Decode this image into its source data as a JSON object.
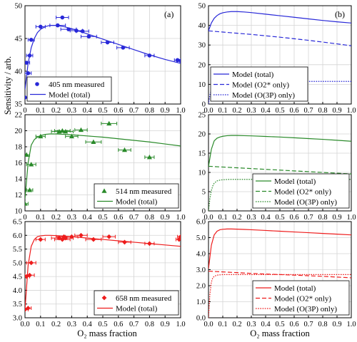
{
  "figure": {
    "ylabel_left": "Sensitivity / arb.",
    "xlabel": "O₂ mass fraction",
    "panel_labels": [
      "(a)",
      "(b)"
    ],
    "colors": {
      "blue": "#2828d8",
      "green": "#2a8a2a",
      "red": "#ee1c1c"
    }
  },
  "chart_data": [
    {
      "id": "a-405",
      "type": "scatter",
      "color": "#2828d8",
      "marker": "circle",
      "xlim": [
        0,
        1
      ],
      "ylim": [
        35,
        50
      ],
      "xticks": [
        "0",
        "0.1",
        "0.2",
        "0.3",
        "0.4",
        "0.5",
        "0.6",
        "0.7",
        "0.8",
        "0.9",
        "1.0"
      ],
      "yticks": [
        "35",
        "40",
        "45",
        "50"
      ],
      "grid": true,
      "legend": "bottom-left",
      "series": [
        {
          "name": "405 nm measured",
          "kind": "points",
          "x": [
            0.0,
            0.01,
            0.02,
            0.03,
            0.04,
            0.1,
            0.21,
            0.24,
            0.28,
            0.33,
            0.37,
            0.41,
            0.53,
            0.63,
            0.8,
            0.98,
            1.0
          ],
          "y": [
            36.0,
            41.3,
            39.7,
            42.4,
            44.8,
            46.8,
            47.0,
            48.2,
            46.4,
            46.2,
            46.1,
            45.3,
            44.4,
            43.6,
            42.4,
            41.7,
            41.6
          ],
          "xerr": [
            0.02,
            0.02,
            0.02,
            0.02,
            0.02,
            0.03,
            0.05,
            0.04,
            0.05,
            0.04,
            0.04,
            0.05,
            0.04,
            0.04,
            0.03,
            0.02,
            0.02
          ]
        },
        {
          "name": "Model (total)",
          "kind": "line",
          "x": [
            0.0,
            0.02,
            0.04,
            0.06,
            0.08,
            0.1,
            0.13,
            0.16,
            0.2,
            0.25,
            0.3,
            0.4,
            0.5,
            0.6,
            0.7,
            0.8,
            0.9,
            1.0
          ],
          "y": [
            37.2,
            41.2,
            43.6,
            45.0,
            45.9,
            46.4,
            46.8,
            47.0,
            47.0,
            46.8,
            46.5,
            45.7,
            44.9,
            44.1,
            43.3,
            42.5,
            41.8,
            41.2
          ]
        }
      ]
    },
    {
      "id": "b-405",
      "type": "line",
      "color": "#2828d8",
      "xlim": [
        0,
        1
      ],
      "ylim": [
        0,
        50
      ],
      "xticks": [
        "0.0",
        "0.1",
        "0.2",
        "0.3",
        "0.4",
        "0.5",
        "0.6",
        "0.7",
        "0.8",
        "0.9",
        "1.0"
      ],
      "yticks": [
        "0",
        "10",
        "20",
        "30",
        "40",
        "50"
      ],
      "grid": true,
      "legend": "bottom-left",
      "series": [
        {
          "name": "Model (total)",
          "dash": "solid",
          "x": [
            0.0,
            0.02,
            0.04,
            0.06,
            0.08,
            0.1,
            0.13,
            0.16,
            0.2,
            0.25,
            0.3,
            0.4,
            0.5,
            0.6,
            0.7,
            0.8,
            0.9,
            1.0
          ],
          "y": [
            37.2,
            41.2,
            43.6,
            45.0,
            45.9,
            46.4,
            46.8,
            47.0,
            47.0,
            46.8,
            46.5,
            45.7,
            44.9,
            44.1,
            43.3,
            42.5,
            41.8,
            41.2
          ]
        },
        {
          "name": "Model (O2* only)",
          "dash": "dashed",
          "x": [
            0.0,
            0.1,
            0.2,
            0.3,
            0.4,
            0.5,
            0.6,
            0.7,
            0.8,
            0.9,
            1.0
          ],
          "y": [
            37.2,
            36.6,
            36.0,
            35.4,
            34.7,
            34.0,
            33.2,
            32.4,
            31.5,
            30.6,
            29.6
          ]
        },
        {
          "name": "Model (O(3P) only)",
          "dash": "dotted",
          "x": [
            0.0,
            0.01,
            0.02,
            0.03,
            0.04,
            0.06,
            0.08,
            0.1,
            0.15,
            0.2,
            0.3,
            0.5,
            0.7,
            1.0
          ],
          "y": [
            0.0,
            4.6,
            7.5,
            9.2,
            10.2,
            11.0,
            11.3,
            11.4,
            11.5,
            11.5,
            11.5,
            11.5,
            11.5,
            11.5
          ]
        }
      ]
    },
    {
      "id": "a-514",
      "type": "scatter",
      "color": "#2a8a2a",
      "marker": "triangle",
      "xlim": [
        0,
        1
      ],
      "ylim": [
        10,
        22
      ],
      "xticks": [
        "0",
        "0.1",
        "0.2",
        "0.3",
        "0.4",
        "0.5",
        "0.6",
        "0.7",
        "0.8",
        "0.9",
        "1.0"
      ],
      "yticks": [
        "10",
        "12",
        "14",
        "16",
        "18",
        "20",
        "22"
      ],
      "grid": true,
      "legend": "bottom-right",
      "series": [
        {
          "name": "514 nm measured",
          "kind": "points",
          "x": [
            0.0,
            0.01,
            0.03,
            0.04,
            0.1,
            0.22,
            0.24,
            0.26,
            0.3,
            0.36,
            0.44,
            0.54,
            0.64,
            0.8
          ],
          "y": [
            10.9,
            17.0,
            12.6,
            15.8,
            19.3,
            19.9,
            20.0,
            19.9,
            19.3,
            20.1,
            18.6,
            20.9,
            17.6,
            16.7
          ],
          "xerr": [
            0.02,
            0.02,
            0.02,
            0.03,
            0.03,
            0.05,
            0.05,
            0.05,
            0.04,
            0.04,
            0.05,
            0.05,
            0.04,
            0.03
          ]
        },
        {
          "name": "Model (total)",
          "kind": "line",
          "x": [
            0.0,
            0.02,
            0.04,
            0.06,
            0.08,
            0.1,
            0.13,
            0.16,
            0.2,
            0.25,
            0.3,
            0.4,
            0.5,
            0.6,
            0.7,
            0.8,
            0.9,
            1.0
          ],
          "y": [
            11.5,
            16.0,
            18.2,
            18.9,
            19.2,
            19.4,
            19.55,
            19.6,
            19.6,
            19.55,
            19.5,
            19.35,
            19.2,
            19.0,
            18.8,
            18.6,
            18.35,
            18.1
          ]
        }
      ]
    },
    {
      "id": "b-514",
      "type": "line",
      "color": "#2a8a2a",
      "xlim": [
        0,
        1
      ],
      "ylim": [
        0,
        25
      ],
      "xticks": [
        "0.0",
        "0.1",
        "0.2",
        "0.3",
        "0.4",
        "0.5",
        "0.6",
        "0.7",
        "0.8",
        "0.9",
        "1.0"
      ],
      "yticks": [
        "0",
        "5",
        "10",
        "15",
        "20",
        "25"
      ],
      "grid": true,
      "legend": "bottom-right",
      "series": [
        {
          "name": "Model (total)",
          "dash": "solid",
          "x": [
            0.0,
            0.02,
            0.04,
            0.06,
            0.08,
            0.1,
            0.13,
            0.16,
            0.2,
            0.25,
            0.3,
            0.4,
            0.5,
            0.6,
            0.7,
            0.8,
            0.9,
            1.0
          ],
          "y": [
            11.5,
            16.0,
            18.2,
            18.9,
            19.2,
            19.4,
            19.55,
            19.6,
            19.6,
            19.55,
            19.5,
            19.35,
            19.2,
            19.0,
            18.8,
            18.6,
            18.35,
            18.1
          ]
        },
        {
          "name": "Model (O2* only)",
          "dash": "dashed",
          "x": [
            0.0,
            0.1,
            0.2,
            0.3,
            0.4,
            0.5,
            0.6,
            0.7,
            0.8,
            0.9,
            1.0
          ],
          "y": [
            11.6,
            11.4,
            11.2,
            11.0,
            10.8,
            10.6,
            10.4,
            10.2,
            10.0,
            9.8,
            9.6
          ]
        },
        {
          "name": "Model (O(3P) only)",
          "dash": "dotted",
          "x": [
            0.0,
            0.01,
            0.02,
            0.03,
            0.04,
            0.06,
            0.08,
            0.1,
            0.15,
            0.2,
            0.3,
            0.5,
            0.7,
            1.0
          ],
          "y": [
            0.0,
            3.2,
            5.3,
            6.5,
            7.2,
            7.8,
            8.0,
            8.1,
            8.2,
            8.2,
            8.2,
            8.2,
            8.2,
            8.2
          ]
        }
      ]
    },
    {
      "id": "a-658",
      "type": "scatter",
      "color": "#ee1c1c",
      "marker": "diamond",
      "xlim": [
        0,
        1
      ],
      "ylim": [
        3.0,
        6.5
      ],
      "xticks": [
        "0.0",
        "0.1",
        "0.2",
        "0.3",
        "0.4",
        "0.5",
        "0.6",
        "0.7",
        "0.8",
        "0.9",
        "1.0"
      ],
      "yticks": [
        "3.0",
        "3.5",
        "4.0",
        "4.5",
        "5.0",
        "5.5",
        "6.0",
        "6.5"
      ],
      "grid": true,
      "legend": "bottom-right",
      "series": [
        {
          "name": "658 nm measured",
          "kind": "points",
          "x": [
            0.0,
            0.01,
            0.02,
            0.03,
            0.04,
            0.1,
            0.22,
            0.24,
            0.25,
            0.26,
            0.3,
            0.36,
            0.44,
            0.54,
            0.64,
            0.8,
            0.99,
            1.0
          ],
          "y": [
            3.3,
            4.5,
            3.35,
            4.55,
            5.0,
            5.85,
            5.9,
            5.85,
            5.95,
            5.9,
            5.95,
            6.0,
            5.85,
            5.95,
            5.75,
            5.7,
            5.85,
            5.95
          ],
          "xerr": [
            0.02,
            0.02,
            0.02,
            0.03,
            0.03,
            0.03,
            0.05,
            0.05,
            0.05,
            0.05,
            0.04,
            0.04,
            0.05,
            0.04,
            0.04,
            0.03,
            0.02,
            0.02
          ]
        },
        {
          "name": "Model (total)",
          "kind": "line",
          "x": [
            0.0,
            0.02,
            0.04,
            0.06,
            0.08,
            0.1,
            0.13,
            0.16,
            0.2,
            0.25,
            0.3,
            0.4,
            0.5,
            0.6,
            0.7,
            0.8,
            0.9,
            1.0
          ],
          "y": [
            3.3,
            4.9,
            5.6,
            5.85,
            5.95,
            5.98,
            6.0,
            6.0,
            5.99,
            5.97,
            5.95,
            5.9,
            5.85,
            5.8,
            5.75,
            5.7,
            5.65,
            5.6
          ]
        }
      ]
    },
    {
      "id": "b-658",
      "type": "line",
      "color": "#ee1c1c",
      "xlim": [
        0,
        1
      ],
      "ylim": [
        0,
        6.5
      ],
      "xticks": [
        "0.0",
        "0.1",
        "0.2",
        "0.3",
        "0.4",
        "0.5",
        "0.6",
        "0.7",
        "0.8",
        "0.9",
        "1.0"
      ],
      "yticks": [
        "0.0",
        "1.0",
        "2.0",
        "3.0",
        "4.0",
        "5.0",
        "6.0"
      ],
      "grid": true,
      "legend": "bottom-right",
      "series": [
        {
          "name": "Model (total)",
          "dash": "solid",
          "x": [
            0.0,
            0.02,
            0.04,
            0.06,
            0.08,
            0.1,
            0.13,
            0.16,
            0.2,
            0.25,
            0.3,
            0.4,
            0.5,
            0.6,
            0.7,
            0.8,
            0.9,
            1.0
          ],
          "y": [
            3.3,
            4.9,
            5.6,
            5.85,
            5.95,
            5.98,
            6.0,
            6.0,
            5.99,
            5.97,
            5.95,
            5.9,
            5.85,
            5.8,
            5.75,
            5.7,
            5.65,
            5.6
          ]
        },
        {
          "name": "Model (O2* only)",
          "dash": "dashed",
          "x": [
            0.0,
            0.1,
            0.2,
            0.3,
            0.4,
            0.5,
            0.6,
            0.7,
            0.8,
            0.9,
            1.0
          ],
          "y": [
            3.15,
            3.1,
            3.05,
            3.0,
            2.96,
            2.92,
            2.88,
            2.84,
            2.8,
            2.75,
            2.7
          ]
        },
        {
          "name": "Model (O(3P) only)",
          "dash": "dotted",
          "x": [
            0.0,
            0.01,
            0.02,
            0.03,
            0.04,
            0.06,
            0.08,
            0.1,
            0.15,
            0.2,
            0.3,
            0.5,
            0.7,
            1.0
          ],
          "y": [
            0.0,
            1.6,
            2.4,
            2.7,
            2.8,
            2.88,
            2.9,
            2.92,
            2.92,
            2.92,
            2.92,
            2.92,
            2.92,
            2.92
          ]
        }
      ]
    }
  ]
}
